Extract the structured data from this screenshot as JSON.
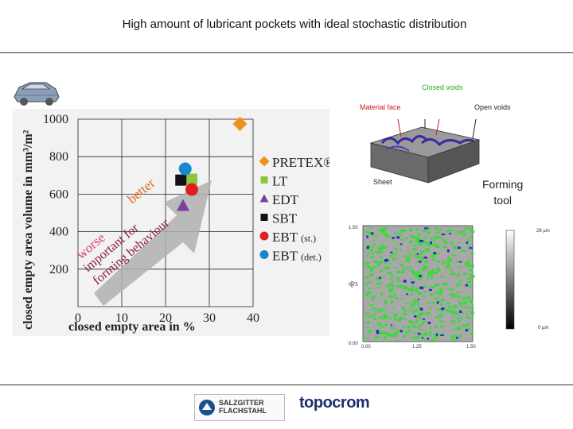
{
  "page": {
    "title": "High amount of lubricant pockets with ideal stochastic distribution"
  },
  "chart_data": {
    "type": "scatter",
    "xlabel": "closed empty area in %",
    "ylabel": "closed empty area volume in mm³/m²",
    "xlim": [
      0,
      40
    ],
    "ylim": [
      0,
      1000
    ],
    "x_ticks": [
      "0",
      "10",
      "20",
      "30",
      "40"
    ],
    "y_ticks": [
      "200",
      "400",
      "600",
      "800",
      "1000"
    ],
    "grid": true,
    "legend_position": "right",
    "series": [
      {
        "name": "PRETEX®",
        "marker": "diamond",
        "color": "#f0901e",
        "x": 37,
        "y": 975
      },
      {
        "name": "LT",
        "marker": "square",
        "color": "#8cc63f",
        "x": 26,
        "y": 680
      },
      {
        "name": "EDT",
        "marker": "triangle",
        "color": "#7b3fa0",
        "x": 24,
        "y": 540
      },
      {
        "name": "SBT",
        "marker": "square",
        "color": "#111111",
        "x": 23.5,
        "y": 675
      },
      {
        "name": "EBT",
        "suffix": "(st.)",
        "marker": "circle",
        "color": "#e02020",
        "x": 26,
        "y": 625
      },
      {
        "name": "EBT",
        "suffix": "(det.)",
        "marker": "circle",
        "color": "#1a86cc",
        "x": 24.5,
        "y": 735
      }
    ],
    "annotations": {
      "arrow_better": "better",
      "arrow_worse": "worse",
      "arrow_text_1": "important for",
      "arrow_text_2": "forming behaviour"
    }
  },
  "diagram_3d": {
    "closed_voids": "Closed voids",
    "material_face": "Material face",
    "open_voids": "Open voids",
    "sheet": "Sheet",
    "forming_line1": "Forming",
    "forming_line2": "tool"
  },
  "heatmap": {
    "y_ticks": [
      "1.50",
      "0.75",
      "0.00"
    ],
    "x_ticks": [
      "0.00",
      "1.25",
      "1.50"
    ],
    "y_unit": "mm",
    "x_unit": "mm",
    "scale_top": "28 µm",
    "scale_bottom": "0 µm"
  },
  "logos": {
    "salzgitter_line1": "SALZGITTER",
    "salzgitter_line2": "FLACHSTAHL",
    "topocrom": "topocrom"
  },
  "colors": {
    "green": "#33dd33",
    "blue": "#1a1acc",
    "arrow": "#b0b0b0"
  }
}
